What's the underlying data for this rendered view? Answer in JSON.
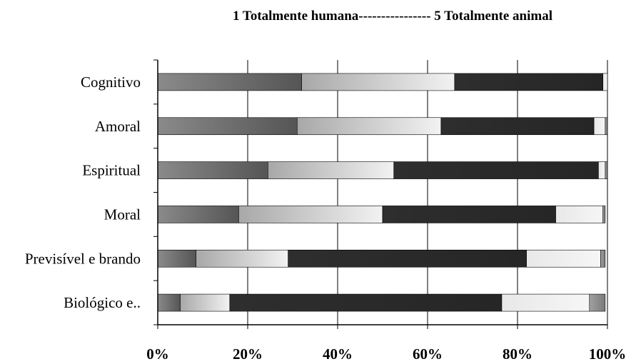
{
  "chart_data": {
    "type": "bar",
    "orientation": "horizontal",
    "stacked": "percent",
    "title": "1 Totalmente humana---------------- 5 Totalmente animal",
    "categories": [
      "Cognitivo",
      "Amoral",
      "Espiritual",
      "Moral",
      "Previsível e brando",
      "Biológico e.."
    ],
    "series": [
      {
        "values": [
          32,
          31,
          24.5,
          18,
          8.5,
          5
        ],
        "color": "#6f6f6f"
      },
      {
        "values": [
          34,
          32,
          28,
          32,
          20.5,
          11
        ],
        "color": "#cfcfcf"
      },
      {
        "values": [
          33,
          34,
          45.5,
          38.5,
          53,
          60.5
        ],
        "color": "#2b2b2b"
      },
      {
        "values": [
          1,
          2.5,
          1.5,
          10.5,
          16.5,
          19.5
        ],
        "color": "#ececec"
      },
      {
        "values": [
          0,
          0.5,
          0.5,
          0.5,
          1,
          3.5
        ],
        "color": "#909090"
      }
    ],
    "xticks": [
      "0%",
      "20%",
      "40%",
      "60%",
      "80%",
      "100%"
    ],
    "xlim": [
      0,
      100
    ],
    "grid": true
  }
}
